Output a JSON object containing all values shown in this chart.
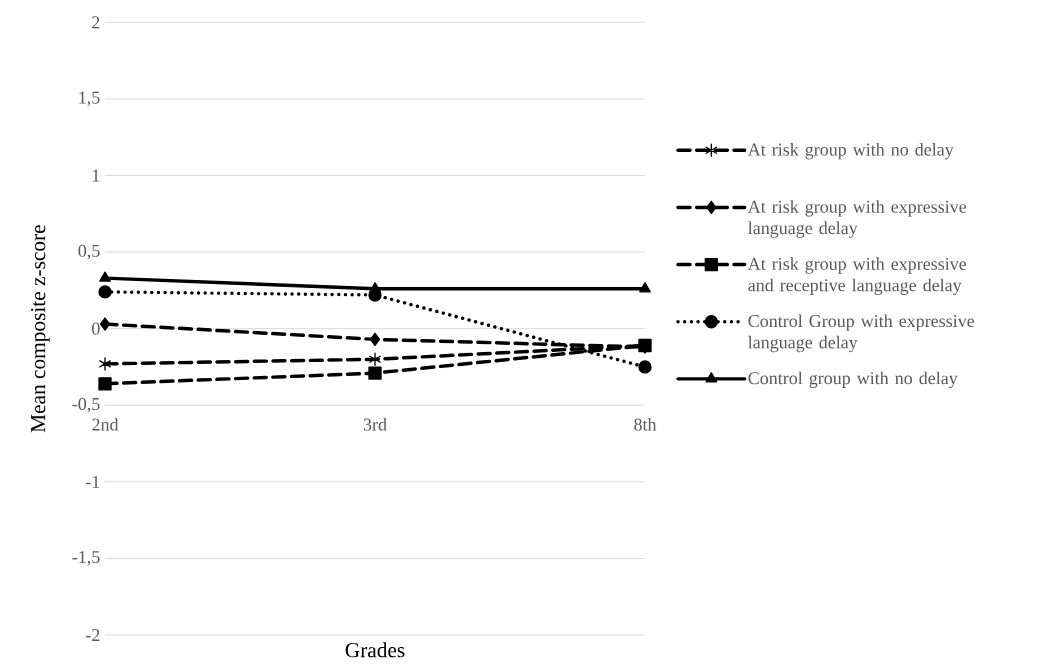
{
  "chart_data": {
    "type": "line",
    "xlabel": "Grades",
    "ylabel": "Mean composite z-score",
    "categories": [
      "2nd",
      "3rd",
      "8th"
    ],
    "series": [
      {
        "name": "At risk group with no delay",
        "color": "#000000",
        "marker": "cross",
        "line_style": "dashed",
        "values": [
          -0.23,
          -0.2,
          -0.11
        ]
      },
      {
        "name": "At risk group with expressive language delay",
        "color": "#000000",
        "marker": "diamond",
        "line_style": "dashed",
        "values": [
          0.03,
          -0.07,
          -0.12
        ]
      },
      {
        "name": "At risk group with expressive and receptive language delay",
        "color": "#000000",
        "marker": "square",
        "line_style": "dashed",
        "values": [
          -0.36,
          -0.29,
          -0.11
        ]
      },
      {
        "name": "Control Group with expressive language delay",
        "color": "#000000",
        "marker": "circle",
        "line_style": "dotted",
        "values": [
          0.24,
          0.22,
          -0.25
        ]
      },
      {
        "name": "Control group with no delay",
        "color": "#000000",
        "marker": "triangle",
        "line_style": "solid",
        "values": [
          0.33,
          0.26,
          0.26
        ]
      }
    ],
    "ylim": [
      -2,
      2
    ],
    "yticks": [
      -2,
      {
        "value": -1.5,
        "label": "-1,5"
      },
      -1,
      {
        "value": -0.5,
        "label": "-0,5"
      },
      0,
      {
        "value": 0.5,
        "label": "0,5"
      },
      1,
      {
        "value": 1.5,
        "label": "1,5"
      },
      2
    ],
    "grid": "y",
    "legend": "right"
  }
}
